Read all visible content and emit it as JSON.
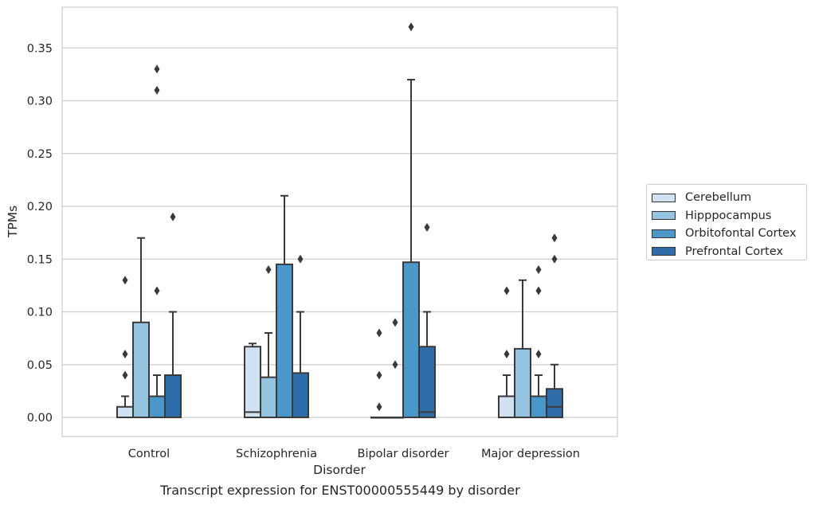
{
  "chart_data": {
    "type": "box",
    "title": "",
    "xlabel": "Disorder",
    "ylabel": "TPMs",
    "caption": "Transcript expression for ENST00000555449 by disorder",
    "ylim": [
      -0.018,
      0.39
    ],
    "yticks": [
      0.0,
      0.05,
      0.1,
      0.15,
      0.2,
      0.25,
      0.3,
      0.35
    ],
    "ytick_labels": [
      "0.00",
      "0.05",
      "0.10",
      "0.15",
      "0.20",
      "0.25",
      "0.30",
      "0.35"
    ],
    "grid": "horizontal",
    "legend_position": "right",
    "categories": [
      "Control",
      "Schizophrenia",
      "Bipolar disorder",
      "Major depression"
    ],
    "series": [
      {
        "name": "Cerebellum",
        "color": "#d0e1f2",
        "boxes": [
          {
            "q1": 0.0,
            "median": 0.0,
            "q3": 0.01,
            "whisker_low": 0.0,
            "whisker_high": 0.02,
            "outliers": [
              0.04,
              0.06,
              0.13
            ]
          },
          {
            "q1": 0.0,
            "median": 0.005,
            "q3": 0.067,
            "whisker_low": 0.0,
            "whisker_high": 0.07,
            "outliers": []
          },
          {
            "q1": 0.0,
            "median": 0.0,
            "q3": 0.0,
            "whisker_low": 0.0,
            "whisker_high": 0.0,
            "outliers": [
              0.01,
              0.04,
              0.08
            ]
          },
          {
            "q1": 0.0,
            "median": 0.0,
            "q3": 0.02,
            "whisker_low": 0.0,
            "whisker_high": 0.04,
            "outliers": [
              0.06,
              0.12
            ]
          }
        ]
      },
      {
        "name": "Hipppocampus",
        "color": "#94c4df",
        "boxes": [
          {
            "q1": 0.0,
            "median": 0.0,
            "q3": 0.09,
            "whisker_low": 0.0,
            "whisker_high": 0.17,
            "outliers": []
          },
          {
            "q1": 0.0,
            "median": 0.0,
            "q3": 0.038,
            "whisker_low": 0.0,
            "whisker_high": 0.08,
            "outliers": [
              0.14
            ]
          },
          {
            "q1": 0.0,
            "median": 0.0,
            "q3": 0.0,
            "whisker_low": 0.0,
            "whisker_high": 0.0,
            "outliers": [
              0.05,
              0.09
            ]
          },
          {
            "q1": 0.0,
            "median": 0.0,
            "q3": 0.065,
            "whisker_low": 0.0,
            "whisker_high": 0.13,
            "outliers": []
          }
        ]
      },
      {
        "name": "Orbitofontal Cortex",
        "color": "#4a98c9",
        "boxes": [
          {
            "q1": 0.0,
            "median": 0.0,
            "q3": 0.02,
            "whisker_low": 0.0,
            "whisker_high": 0.04,
            "outliers": [
              0.12,
              0.31,
              0.33
            ]
          },
          {
            "q1": 0.0,
            "median": 0.0,
            "q3": 0.145,
            "whisker_low": 0.0,
            "whisker_high": 0.21,
            "outliers": []
          },
          {
            "q1": 0.0,
            "median": 0.0,
            "q3": 0.147,
            "whisker_low": 0.0,
            "whisker_high": 0.32,
            "outliers": [
              0.37
            ]
          },
          {
            "q1": 0.0,
            "median": 0.0,
            "q3": 0.02,
            "whisker_low": 0.0,
            "whisker_high": 0.04,
            "outliers": [
              0.06,
              0.12,
              0.14
            ]
          }
        ]
      },
      {
        "name": "Prefrontal Cortex",
        "color": "#2e6da8",
        "boxes": [
          {
            "q1": 0.0,
            "median": 0.0,
            "q3": 0.04,
            "whisker_low": 0.0,
            "whisker_high": 0.1,
            "outliers": [
              0.19
            ]
          },
          {
            "q1": 0.0,
            "median": 0.0,
            "q3": 0.042,
            "whisker_low": 0.0,
            "whisker_high": 0.1,
            "outliers": [
              0.15
            ]
          },
          {
            "q1": 0.0,
            "median": 0.005,
            "q3": 0.067,
            "whisker_low": 0.0,
            "whisker_high": 0.1,
            "outliers": [
              0.18
            ]
          },
          {
            "q1": 0.0,
            "median": 0.01,
            "q3": 0.027,
            "whisker_low": 0.0,
            "whisker_high": 0.05,
            "outliers": [
              0.15,
              0.17
            ]
          }
        ]
      }
    ]
  }
}
